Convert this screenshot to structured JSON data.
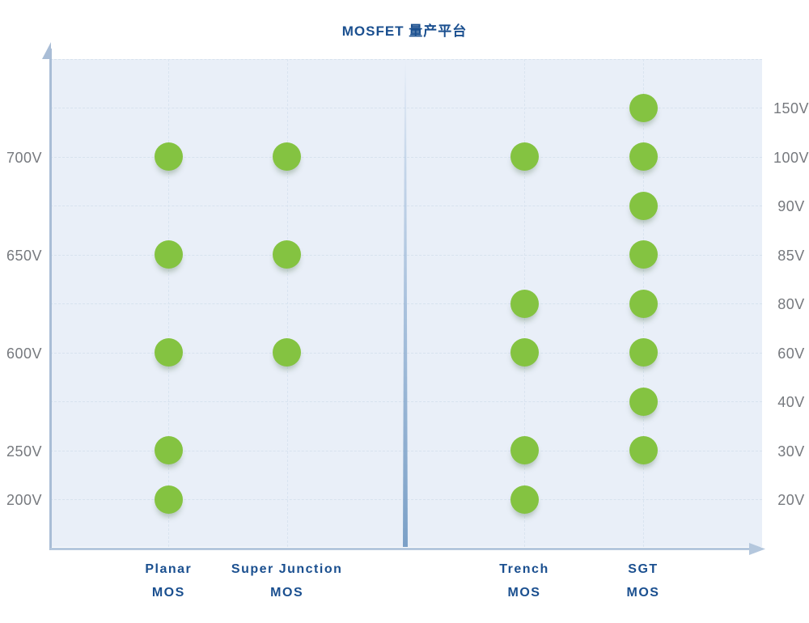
{
  "chart_data": {
    "type": "scatter",
    "title": "MOSFET 量产平台",
    "legend": "none",
    "grid": "dashed horizontal and vertical gridlines",
    "row_labels_left": [
      "",
      "",
      "700V",
      "",
      "650V",
      "",
      "600V",
      "",
      "250V",
      "200V"
    ],
    "row_labels_right": [
      "",
      "150V",
      "100V",
      "90V",
      "85V",
      "80V",
      "60V",
      "40V",
      "30V",
      "20V"
    ],
    "left_axis_ticks": [
      "700V",
      "650V",
      "600V",
      "250V",
      "200V"
    ],
    "right_axis_ticks": [
      "150V",
      "100V",
      "90V",
      "85V",
      "80V",
      "60V",
      "40V",
      "30V",
      "20V"
    ],
    "platforms": [
      {
        "name_line1": "Planar",
        "name_line2": "MOS",
        "section": "left",
        "voltages": [
          "700V",
          "650V",
          "600V",
          "250V",
          "200V"
        ]
      },
      {
        "name_line1": "Super Junction",
        "name_line2": "MOS",
        "section": "left",
        "voltages": [
          "700V",
          "650V",
          "600V"
        ]
      },
      {
        "name_line1": "Trench",
        "name_line2": "MOS",
        "section": "right",
        "voltages": [
          "100V",
          "80V",
          "60V",
          "30V",
          "20V"
        ]
      },
      {
        "name_line1": "SGT",
        "name_line2": "MOS",
        "section": "right",
        "voltages": [
          "150V",
          "100V",
          "90V",
          "85V",
          "80V",
          "60V",
          "40V",
          "30V"
        ]
      }
    ],
    "colors": {
      "dot": "#84c341",
      "plot_background": "#e9eff8",
      "gridline": "#d7e2ee",
      "axis_line": "#a9bdd6",
      "divider": "#7ba0c7",
      "title_text": "#1a4f8f",
      "platform_text": "#1a4f8f",
      "axis_text": "#76797e"
    }
  }
}
